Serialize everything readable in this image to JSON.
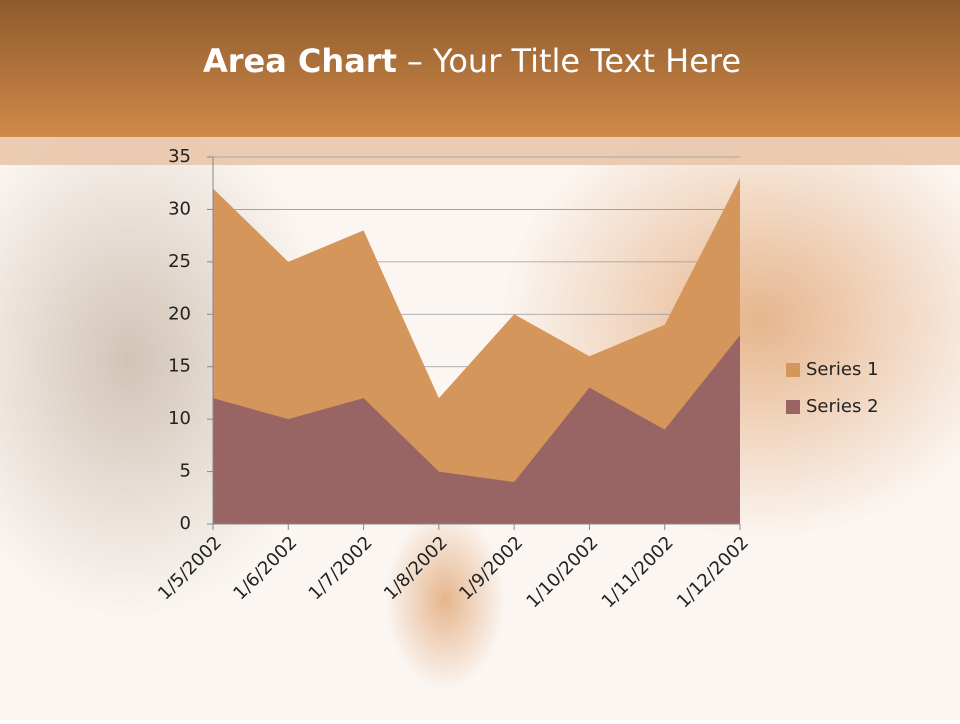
{
  "chart_data": {
    "type": "area",
    "title": [
      "Area Chart",
      "– Your Title Text Here"
    ],
    "categories": [
      "1/5/2002",
      "1/6/2002",
      "1/7/2002",
      "1/8/2002",
      "1/9/2002",
      "1/10/2002",
      "1/11/2002",
      "1/12/2002"
    ],
    "series": [
      {
        "name": "Series 1",
        "color": "#d4965a",
        "values": [
          32,
          25,
          28,
          12,
          20,
          16,
          19,
          33
        ]
      },
      {
        "name": "Series 2",
        "color": "#996464",
        "values": [
          12,
          10,
          12,
          5,
          4,
          13,
          9,
          18
        ]
      }
    ],
    "ylim": [
      0,
      35
    ],
    "yticks": [
      0,
      5,
      10,
      15,
      20,
      25,
      30,
      35
    ],
    "grid": true,
    "legend": "right"
  }
}
